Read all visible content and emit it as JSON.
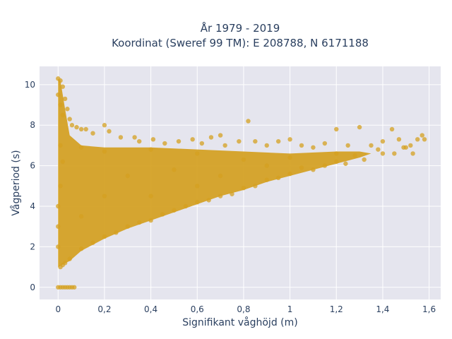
{
  "chart_data": {
    "type": "scatter",
    "title_line1": "År 1979 - 2019",
    "title_line2": "Koordinat (Sweref 99 TM): E 208788, N 6171188",
    "xlabel": "Signifikant våghöjd (m)",
    "ylabel": "Vågperiod (s)",
    "xlim": [
      -0.08,
      1.65
    ],
    "ylim": [
      -0.6,
      10.9
    ],
    "x_ticks": [
      0,
      0.2,
      0.4,
      0.6,
      0.8,
      1,
      1.2,
      1.4,
      1.6
    ],
    "x_tick_labels": [
      "0",
      "0,2",
      "0,4",
      "0,6",
      "0,8",
      "1",
      "1,2",
      "1,4",
      "1,6"
    ],
    "y_ticks": [
      0,
      2,
      4,
      6,
      8,
      10
    ],
    "y_tick_labels": [
      "0",
      "2",
      "4",
      "6",
      "8",
      "10"
    ],
    "grid": true,
    "marker_color": "#D4A020",
    "plot_bg": "#E5E5EE",
    "series": [
      {
        "values": [
          [
            0.0,
            0.0
          ],
          [
            0.01,
            0.0
          ],
          [
            0.02,
            0.0
          ],
          [
            0.03,
            0.0
          ],
          [
            0.04,
            0.0
          ],
          [
            0.05,
            0.0
          ],
          [
            0.06,
            0.0
          ],
          [
            0.07,
            0.0
          ],
          [
            0.0,
            10.3
          ],
          [
            0.01,
            10.2
          ],
          [
            0.02,
            9.9
          ],
          [
            0.0,
            9.5
          ],
          [
            0.03,
            9.3
          ],
          [
            0.01,
            9.0
          ],
          [
            0.04,
            8.8
          ],
          [
            0.02,
            8.5
          ],
          [
            0.05,
            8.3
          ],
          [
            0.06,
            8.0
          ],
          [
            0.08,
            7.9
          ],
          [
            0.1,
            7.8
          ],
          [
            0.12,
            7.8
          ],
          [
            0.15,
            7.6
          ],
          [
            0.2,
            8.0
          ],
          [
            0.22,
            7.7
          ],
          [
            0.27,
            7.4
          ],
          [
            0.33,
            7.4
          ],
          [
            0.35,
            7.2
          ],
          [
            0.41,
            7.3
          ],
          [
            0.46,
            7.1
          ],
          [
            0.52,
            7.2
          ],
          [
            0.58,
            7.3
          ],
          [
            0.62,
            7.1
          ],
          [
            0.66,
            7.4
          ],
          [
            0.7,
            7.5
          ],
          [
            0.72,
            7.0
          ],
          [
            0.78,
            7.2
          ],
          [
            0.82,
            8.2
          ],
          [
            0.85,
            7.2
          ],
          [
            0.9,
            7.0
          ],
          [
            0.95,
            7.2
          ],
          [
            1.0,
            7.3
          ],
          [
            1.05,
            7.0
          ],
          [
            1.1,
            6.9
          ],
          [
            1.15,
            7.1
          ],
          [
            1.2,
            7.8
          ],
          [
            1.25,
            7.0
          ],
          [
            1.3,
            7.9
          ],
          [
            1.35,
            7.0
          ],
          [
            1.4,
            7.2
          ],
          [
            1.44,
            7.8
          ],
          [
            1.47,
            7.3
          ],
          [
            1.49,
            6.9
          ],
          [
            1.52,
            7.0
          ],
          [
            1.55,
            7.3
          ],
          [
            1.57,
            7.5
          ],
          [
            1.58,
            7.3
          ],
          [
            1.53,
            6.6
          ],
          [
            1.5,
            6.9
          ],
          [
            1.45,
            6.6
          ],
          [
            1.38,
            6.8
          ],
          [
            1.32,
            6.3
          ],
          [
            1.28,
            6.5
          ],
          [
            1.24,
            6.1
          ],
          [
            1.2,
            6.2
          ],
          [
            1.15,
            6.0
          ],
          [
            1.1,
            5.8
          ],
          [
            1.05,
            5.9
          ],
          [
            1.0,
            5.6
          ],
          [
            0.95,
            5.4
          ],
          [
            0.9,
            5.3
          ],
          [
            0.85,
            5.0
          ],
          [
            0.8,
            4.9
          ],
          [
            0.75,
            4.6
          ],
          [
            0.7,
            4.5
          ],
          [
            0.65,
            4.3
          ],
          [
            0.6,
            4.2
          ],
          [
            0.55,
            4.0
          ],
          [
            0.5,
            3.8
          ],
          [
            0.45,
            3.6
          ],
          [
            0.4,
            3.3
          ],
          [
            0.35,
            3.2
          ],
          [
            0.3,
            3.0
          ],
          [
            0.25,
            2.7
          ],
          [
            0.2,
            2.5
          ],
          [
            0.15,
            2.2
          ],
          [
            0.1,
            1.9
          ],
          [
            0.05,
            1.4
          ],
          [
            0.02,
            1.1
          ],
          [
            0.01,
            1.0
          ],
          [
            0.03,
            1.2
          ],
          [
            0.02,
            6.2
          ],
          [
            0.01,
            5.0
          ],
          [
            0.0,
            4.0
          ],
          [
            0.0,
            3.0
          ],
          [
            0.0,
            2.0
          ],
          [
            0.01,
            7.0
          ],
          [
            0.9,
            6.0
          ],
          [
            0.8,
            6.3
          ],
          [
            0.6,
            6.6
          ],
          [
            0.4,
            6.8
          ],
          [
            0.2,
            6.7
          ],
          [
            0.1,
            6.9
          ],
          [
            0.7,
            5.5
          ],
          [
            0.5,
            5.8
          ],
          [
            0.3,
            5.5
          ],
          [
            0.2,
            4.5
          ],
          [
            0.1,
            3.5
          ],
          [
            0.4,
            4.5
          ],
          [
            0.6,
            5.0
          ],
          [
            1.0,
            6.4
          ],
          [
            1.2,
            6.6
          ],
          [
            1.4,
            6.6
          ]
        ]
      }
    ]
  }
}
